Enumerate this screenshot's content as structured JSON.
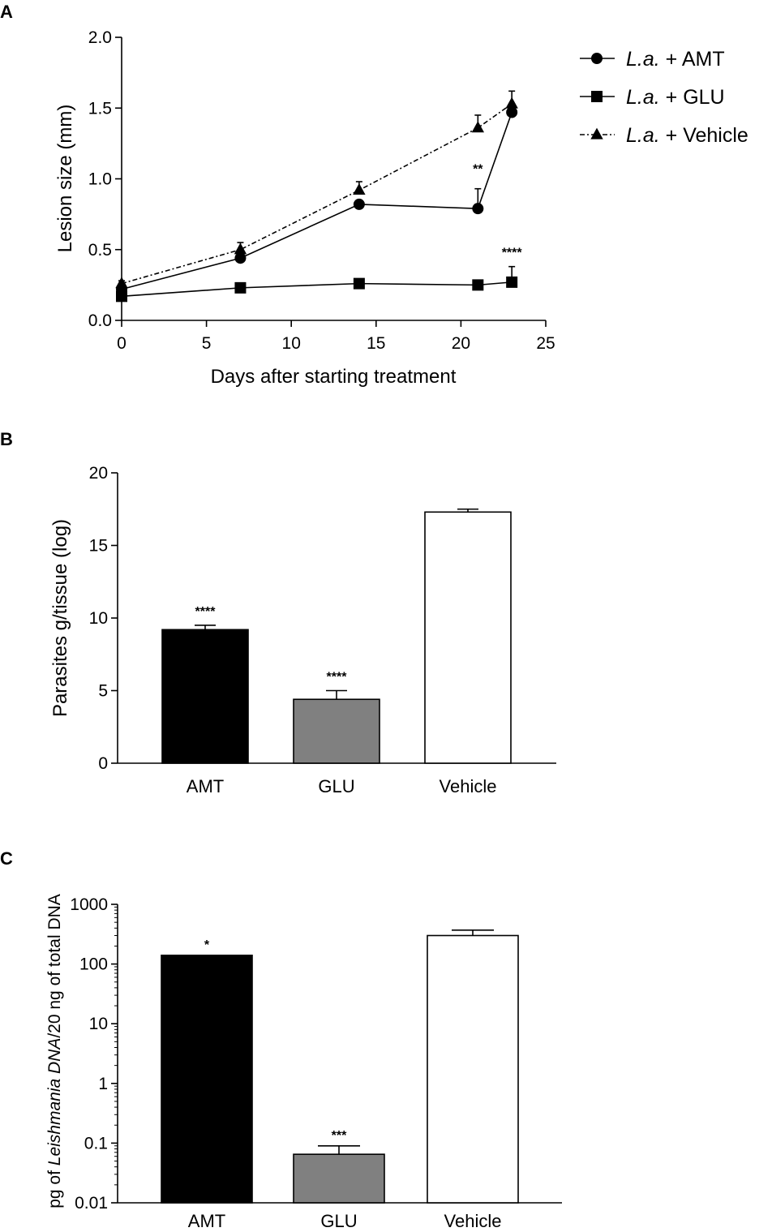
{
  "panels": {
    "a": {
      "letter": "A"
    },
    "b": {
      "letter": "B"
    },
    "c": {
      "letter": "C"
    }
  },
  "chart_data": [
    {
      "panel": "A",
      "type": "line",
      "xlabel": "Days after starting treatment",
      "ylabel": "Lesion size (mm)",
      "xlim": [
        0,
        25
      ],
      "ylim": [
        0,
        2.0
      ],
      "xticks": [
        0,
        5,
        10,
        15,
        20,
        25
      ],
      "yticks": [
        "0.0",
        "0.5",
        "1.0",
        "1.5",
        "2.0"
      ],
      "legend_position": "top-right",
      "x": [
        0,
        7,
        14,
        21,
        23
      ],
      "series": [
        {
          "name": "L.a. + AMT",
          "name_italic": "L.a.",
          "name_rest": " + AMT",
          "marker": "circle",
          "line": "solid",
          "values": [
            0.22,
            0.44,
            0.82,
            0.79,
            1.47
          ],
          "errors": [
            0.02,
            0.03,
            0.02,
            0.14,
            0.02
          ]
        },
        {
          "name": "L.a. + GLU",
          "name_italic": "L.a.",
          "name_rest": " + GLU",
          "marker": "square",
          "line": "solid",
          "values": [
            0.17,
            0.23,
            0.26,
            0.25,
            0.27
          ],
          "errors": [
            0.01,
            0.01,
            0.01,
            0.01,
            0.11
          ]
        },
        {
          "name": "L.a. + Vehicle",
          "name_italic": "L.a.",
          "name_rest": " + Vehicle",
          "marker": "triangle",
          "line": "dashdot",
          "values": [
            0.26,
            0.5,
            0.92,
            1.36,
            1.53
          ],
          "errors": [
            0.02,
            0.05,
            0.06,
            0.09,
            0.09
          ]
        }
      ],
      "annotations": [
        {
          "text": "**",
          "x": 21,
          "y": 1.04
        },
        {
          "text": "****",
          "x": 23,
          "y": 0.45
        }
      ]
    },
    {
      "panel": "B",
      "type": "bar",
      "ylabel": "Parasites g/tissue (log)",
      "categories": [
        "AMT",
        "GLU",
        "Vehicle"
      ],
      "values": [
        9.2,
        4.4,
        17.3
      ],
      "errors": [
        0.3,
        0.6,
        0.2
      ],
      "significance": [
        "****",
        "****",
        ""
      ],
      "bar_colors": [
        "#000000",
        "#808080",
        "#ffffff"
      ],
      "ylim": [
        0,
        20
      ],
      "yticks": [
        "0",
        "5",
        "10",
        "15",
        "20"
      ]
    },
    {
      "panel": "C",
      "type": "bar",
      "yscale": "log",
      "ylabel_parts": [
        "pg of ",
        "Leishmania DNA",
        "/20 ng of total DNA"
      ],
      "categories": [
        "AMT",
        "GLU",
        "Vehicle"
      ],
      "values": [
        140,
        0.065,
        300
      ],
      "errors_upper": [
        140,
        0.09,
        370
      ],
      "significance": [
        "*",
        "***",
        ""
      ],
      "bar_colors": [
        "#000000",
        "#808080",
        "#ffffff"
      ],
      "ylim": [
        0.01,
        1000
      ],
      "yticks": [
        "0.01",
        "0.1",
        "1",
        "10",
        "100",
        "1000"
      ]
    }
  ]
}
